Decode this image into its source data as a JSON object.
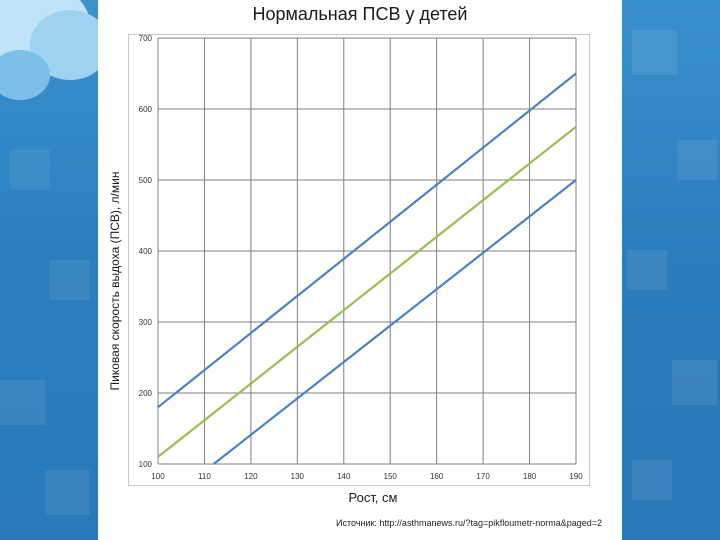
{
  "slide": {
    "title": "Нормальная ПСВ у детей",
    "source": "Источник: http://asthmanews.ru/?tag=pikfloumetr-norma&paged=2"
  },
  "chart_data": {
    "type": "line",
    "xlabel": "Рост, см",
    "ylabel": "Пиковая скорость выдоха (ПСВ), л/мин",
    "xlim": [
      100,
      190
    ],
    "ylim": [
      100,
      700
    ],
    "xticks": [
      100,
      110,
      120,
      130,
      140,
      150,
      160,
      170,
      180,
      190
    ],
    "yticks": [
      100,
      200,
      300,
      400,
      500,
      600,
      700
    ],
    "grid": true,
    "legend": "none",
    "series": [
      {
        "color": "#4f81bd",
        "x": [
          100,
          190
        ],
        "y": [
          180,
          650
        ]
      },
      {
        "color": "#9bbb59",
        "x": [
          100,
          190
        ],
        "y": [
          110,
          575
        ]
      },
      {
        "color": "#4f81bd",
        "x": [
          112,
          190
        ],
        "y": [
          100,
          500
        ]
      }
    ]
  }
}
